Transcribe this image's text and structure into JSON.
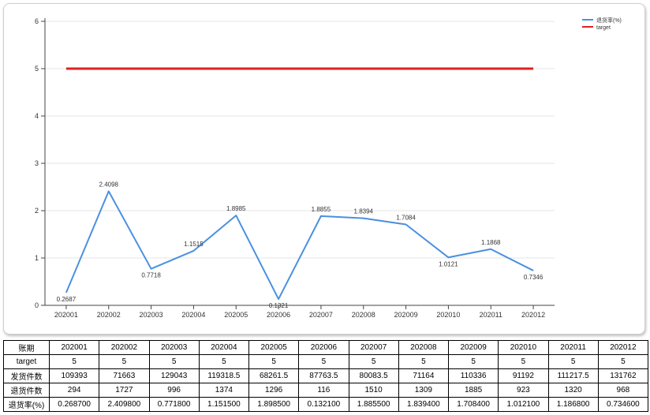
{
  "chart_data": {
    "type": "line",
    "title": "",
    "xlabel": "",
    "ylabel": "",
    "ylim": [
      0,
      6
    ],
    "yticks": [
      0,
      1,
      2,
      3,
      4,
      5,
      6
    ],
    "categories": [
      "202001",
      "202002",
      "202003",
      "202004",
      "202005",
      "202006",
      "202007",
      "202008",
      "202009",
      "202010",
      "202011",
      "202012"
    ],
    "grid": "horizontal",
    "legend_position": "top-right",
    "series": [
      {
        "name": "退货率(%)",
        "color": "#4a90e2",
        "values": [
          0.2687,
          2.4098,
          0.7718,
          1.1515,
          1.8985,
          0.1321,
          1.8855,
          1.8394,
          1.7084,
          1.0121,
          1.1868,
          0.7346
        ],
        "labels": [
          "0.2687",
          "2.4098",
          "0.7718",
          "1.1515",
          "1.8985",
          "0.1321",
          "1.8855",
          "1.8394",
          "1.7084",
          "1.0121",
          "1.1868",
          "0.7346"
        ]
      },
      {
        "name": "target",
        "color": "#e02020",
        "values": [
          5,
          5,
          5,
          5,
          5,
          5,
          5,
          5,
          5,
          5,
          5,
          5
        ]
      }
    ]
  },
  "table": {
    "header_label": "账期",
    "columns": [
      "202001",
      "202002",
      "202003",
      "202004",
      "202005",
      "202006",
      "202007",
      "202008",
      "202009",
      "202010",
      "202011",
      "202012"
    ],
    "rows": [
      {
        "label": "target",
        "values": [
          "5",
          "5",
          "5",
          "5",
          "5",
          "5",
          "5",
          "5",
          "5",
          "5",
          "5",
          "5"
        ]
      },
      {
        "label": "发货件数",
        "values": [
          "109393",
          "71663",
          "129043",
          "119318.5",
          "68261.5",
          "87763.5",
          "80083.5",
          "71164",
          "110336",
          "91192",
          "111217.5",
          "131762"
        ]
      },
      {
        "label": "退货件数",
        "values": [
          "294",
          "1727",
          "996",
          "1374",
          "1296",
          "116",
          "1510",
          "1309",
          "1885",
          "923",
          "1320",
          "968"
        ]
      },
      {
        "label": "退货率(%)",
        "values": [
          "0.268700",
          "2.409800",
          "0.771800",
          "1.151500",
          "1.898500",
          "0.132100",
          "1.885500",
          "1.839400",
          "1.708400",
          "1.012100",
          "1.186800",
          "0.734600"
        ]
      }
    ]
  }
}
